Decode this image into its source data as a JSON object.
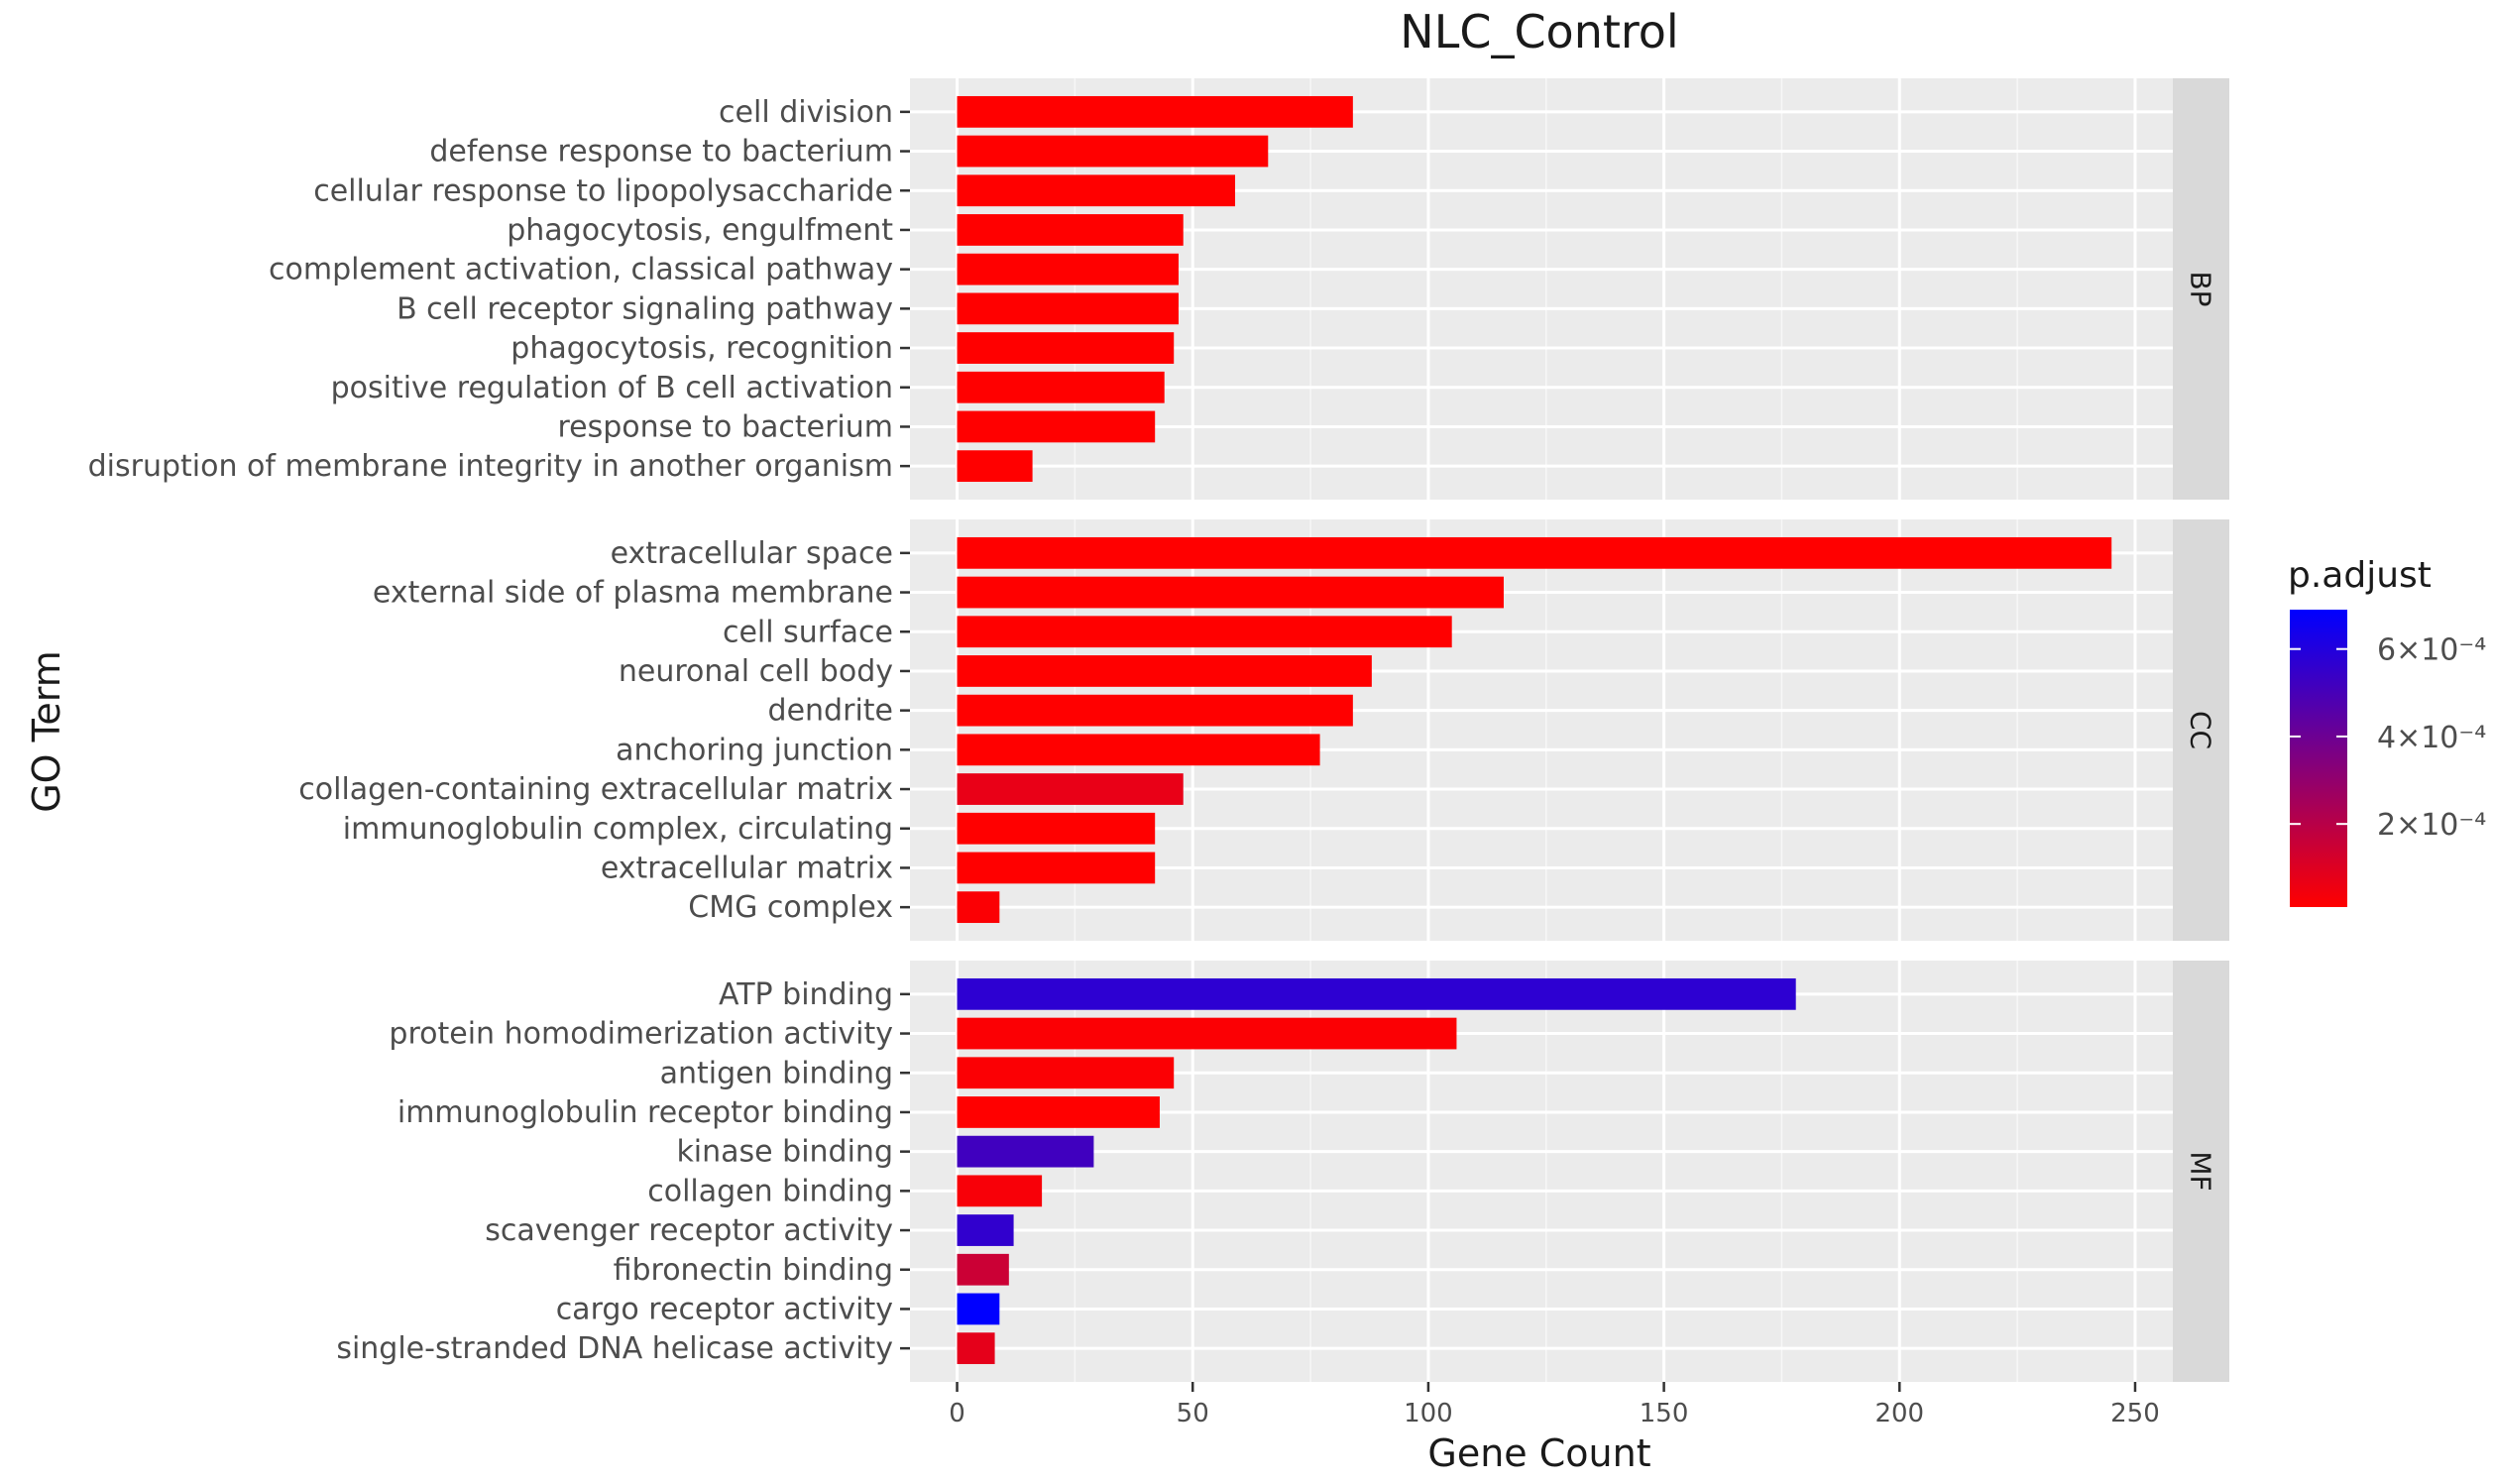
{
  "chart_data": {
    "type": "bar",
    "orientation": "horizontal",
    "title": "NLC_Control",
    "xlabel": "Gene Count",
    "ylabel": "GO Term",
    "xlim": [
      -10,
      258
    ],
    "xticks": [
      0,
      50,
      100,
      150,
      200,
      250
    ],
    "grid": true,
    "legend": {
      "title": "p.adjust",
      "position": "right",
      "min": 1e-05,
      "max": 0.00069,
      "color_low": "#ff0000",
      "color_high": "#0000ff",
      "labels": [
        {
          "value": 0.0006,
          "text": "6×10⁻⁴"
        },
        {
          "value": 0.0004,
          "text": "4×10⁻⁴"
        },
        {
          "value": 0.0002,
          "text": "2×10⁻⁴"
        }
      ]
    },
    "facets": [
      {
        "name": "BP",
        "terms": [
          {
            "label": "cell division",
            "count": 84,
            "p_adjust": 1e-05
          },
          {
            "label": "defense response to bacterium",
            "count": 66,
            "p_adjust": 1e-05
          },
          {
            "label": "cellular response to lipopolysaccharide",
            "count": 59,
            "p_adjust": 1e-05
          },
          {
            "label": "phagocytosis, engulfment",
            "count": 48,
            "p_adjust": 1e-05
          },
          {
            "label": "complement activation, classical pathway",
            "count": 47,
            "p_adjust": 1e-05
          },
          {
            "label": "B cell receptor signaling pathway",
            "count": 47,
            "p_adjust": 1e-05
          },
          {
            "label": "phagocytosis, recognition",
            "count": 46,
            "p_adjust": 1e-05
          },
          {
            "label": "positive regulation of B cell activation",
            "count": 44,
            "p_adjust": 1e-05
          },
          {
            "label": "response to bacterium",
            "count": 42,
            "p_adjust": 1e-05
          },
          {
            "label": "disruption of membrane integrity in another organism",
            "count": 16,
            "p_adjust": 1e-05
          }
        ]
      },
      {
        "name": "CC",
        "terms": [
          {
            "label": "extracellular space",
            "count": 245,
            "p_adjust": 1e-05
          },
          {
            "label": "external side of plasma membrane",
            "count": 116,
            "p_adjust": 1e-05
          },
          {
            "label": "cell surface",
            "count": 105,
            "p_adjust": 1e-05
          },
          {
            "label": "neuronal cell body",
            "count": 88,
            "p_adjust": 1e-05
          },
          {
            "label": "dendrite",
            "count": 84,
            "p_adjust": 1e-05
          },
          {
            "label": "anchoring junction",
            "count": 77,
            "p_adjust": 1e-05
          },
          {
            "label": "collagen-containing extracellular matrix",
            "count": 48,
            "p_adjust": 7e-05
          },
          {
            "label": "immunoglobulin complex, circulating",
            "count": 42,
            "p_adjust": 1e-05
          },
          {
            "label": "extracellular matrix",
            "count": 42,
            "p_adjust": 1e-05
          },
          {
            "label": "CMG complex",
            "count": 9,
            "p_adjust": 2e-05
          }
        ]
      },
      {
        "name": "MF",
        "terms": [
          {
            "label": "ATP binding",
            "count": 178,
            "p_adjust": 0.00057
          },
          {
            "label": "protein homodimerization activity",
            "count": 106,
            "p_adjust": 2e-05
          },
          {
            "label": "antigen binding",
            "count": 46,
            "p_adjust": 2e-05
          },
          {
            "label": "immunoglobulin receptor binding",
            "count": 43,
            "p_adjust": 1e-05
          },
          {
            "label": "kinase binding",
            "count": 29,
            "p_adjust": 0.00052
          },
          {
            "label": "collagen binding",
            "count": 18,
            "p_adjust": 3e-05
          },
          {
            "label": "scavenger receptor activity",
            "count": 12,
            "p_adjust": 0.00056
          },
          {
            "label": "fibronectin binding",
            "count": 11,
            "p_adjust": 0.00015
          },
          {
            "label": "cargo receptor activity",
            "count": 9,
            "p_adjust": 0.00069
          },
          {
            "label": "single-stranded DNA helicase activity",
            "count": 8,
            "p_adjust": 8e-05
          }
        ]
      }
    ]
  }
}
